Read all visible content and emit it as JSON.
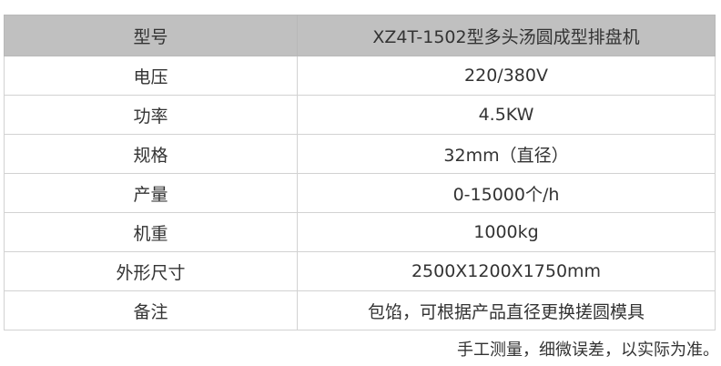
{
  "table": {
    "header": {
      "label": "型号",
      "value": "XZ4T-1502型多头汤圆成型排盘机"
    },
    "rows": [
      {
        "label": "电压",
        "value": "220/380V"
      },
      {
        "label": "功率",
        "value": "4.5KW"
      },
      {
        "label": "规格",
        "value": "32mm（直径）"
      },
      {
        "label": "产量",
        "value": "0-15000个/h"
      },
      {
        "label": "机重",
        "value": "1000kg"
      },
      {
        "label": "外形尺寸",
        "value": "2500X1200X1750mm"
      },
      {
        "label": "备注",
        "value": "包馅，可根据产品直径更换搓圆模具"
      }
    ]
  },
  "note": "手工测量，细微误差，以实际为准。",
  "colors": {
    "header_bg": "#c0c0c0",
    "text": "#333333",
    "border": "#d2d2d2"
  }
}
